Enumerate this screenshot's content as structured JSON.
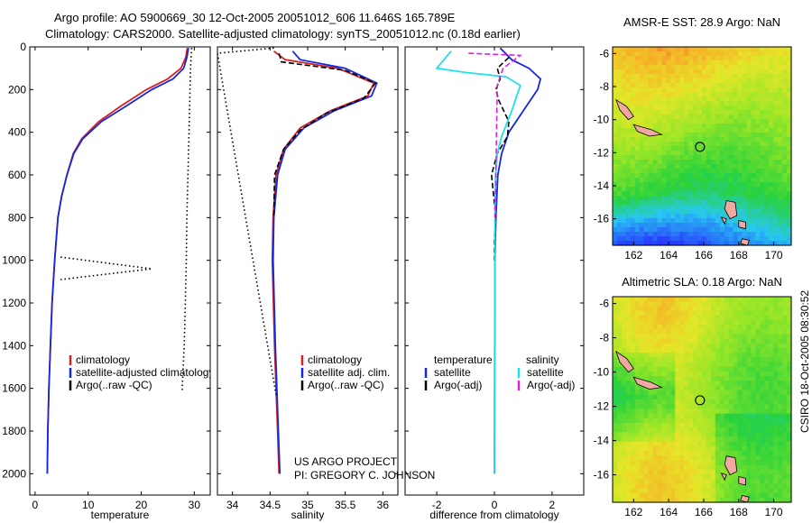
{
  "header": {
    "line1": "Argo profile: AO 5900669_30 12-Oct-2005 20051012_606 11.646S 165.789E",
    "line2": "Climatology: CARS2000. Satellite-adjusted climatology: synTS_20051012.nc (0.18d earlier)"
  },
  "credits": {
    "project": "US ARGO PROJECT",
    "pi": "PI: GREGORY C. JOHNSON",
    "timestamp": "CSIRO 18-Oct-2005 08:30:52"
  },
  "colors": {
    "climatology": "#d62020",
    "satellite": "#1428e0",
    "argo": "#000000",
    "sal_satellite": "#22e0e8",
    "sal_argo": "#e020e0",
    "coast_fill": "#f0a8a0"
  },
  "chart_data": [
    {
      "type": "line",
      "id": "temperature_profile",
      "xlabel": "temperature",
      "ylabel": "",
      "xlim": [
        -1,
        33
      ],
      "ylim": [
        2100,
        0
      ],
      "xticks": [
        0,
        10,
        20,
        30
      ],
      "yticks": [
        0,
        200,
        400,
        600,
        800,
        1000,
        1200,
        1400,
        1600,
        1800,
        2000
      ],
      "legend": {
        "position": "bottom-right",
        "entries": [
          "climatology",
          "satellite-adjusted climatology",
          "Argo(..raw -QC)"
        ]
      },
      "series": [
        {
          "name": "climatology",
          "color": "#d62020",
          "style": "solid",
          "x": [
            28.7,
            28.4,
            27.5,
            25,
            21,
            16,
            12,
            8.8,
            7.2,
            6.0,
            5.0,
            4.3,
            3.7,
            3.2,
            2.9,
            2.6,
            2.4,
            2.3
          ],
          "y": [
            5,
            50,
            100,
            150,
            200,
            280,
            350,
            430,
            500,
            600,
            700,
            800,
            1000,
            1200,
            1400,
            1600,
            1800,
            2000
          ]
        },
        {
          "name": "satellite-adjusted climatology",
          "color": "#1428e0",
          "style": "solid",
          "x": [
            28.9,
            28.6,
            28.0,
            26,
            22,
            17,
            12.5,
            9.0,
            7.3,
            6.0,
            5.0,
            4.3,
            3.7,
            3.2,
            2.9,
            2.6,
            2.4,
            2.3
          ],
          "y": [
            5,
            50,
            100,
            150,
            200,
            280,
            350,
            430,
            500,
            600,
            700,
            800,
            1000,
            1200,
            1400,
            1600,
            1800,
            2000
          ]
        },
        {
          "name": "Argo(..raw -QC)",
          "color": "#000000",
          "style": "dotted",
          "x": [
            29.5,
            29.4,
            29.3,
            29.2,
            29.1,
            29.0,
            28.8,
            28.6,
            28.5,
            28.3,
            28.2,
            28.1,
            27.9,
            27.7
          ],
          "y": [
            5,
            50,
            100,
            200,
            300,
            400,
            600,
            800,
            1000,
            1200,
            1300,
            1400,
            1500,
            1620
          ]
        },
        {
          "name": "Argo spike",
          "color": "#000000",
          "style": "dotted",
          "x": [
            4.8,
            22.0,
            4.8
          ],
          "y": [
            985,
            1040,
            1090
          ]
        }
      ]
    },
    {
      "type": "line",
      "id": "salinity_profile",
      "xlabel": "salinity",
      "xlim": [
        33.8,
        36.2
      ],
      "ylim": [
        2100,
        0
      ],
      "xticks": [
        34,
        34.5,
        35,
        35.5,
        36
      ],
      "yticks": [
        0,
        200,
        400,
        600,
        800,
        1000,
        1200,
        1400,
        1600,
        1800,
        2000
      ],
      "legend": {
        "position": "bottom-right",
        "entries": [
          "climatology",
          "satellite adj. clim.",
          "Argo(..raw -QC)"
        ]
      },
      "series": [
        {
          "name": "climatology",
          "color": "#d62020",
          "style": "solid",
          "x": [
            34.55,
            34.7,
            35.4,
            35.88,
            35.8,
            35.3,
            34.9,
            34.68,
            34.58,
            34.54,
            34.53,
            34.56,
            34.6,
            34.62
          ],
          "y": [
            20,
            60,
            100,
            170,
            230,
            300,
            380,
            480,
            600,
            800,
            1000,
            1400,
            1800,
            2000
          ]
        },
        {
          "name": "satellite adj. clim.",
          "color": "#1428e0",
          "style": "solid",
          "x": [
            34.8,
            34.9,
            35.5,
            35.92,
            35.85,
            35.35,
            34.95,
            34.7,
            34.6,
            34.55,
            34.54,
            34.57,
            34.61,
            34.63
          ],
          "y": [
            20,
            60,
            100,
            170,
            230,
            300,
            380,
            480,
            600,
            800,
            1000,
            1400,
            1800,
            2000
          ]
        },
        {
          "name": "Argo(..raw -QC)",
          "color": "#000000",
          "style": "dashed",
          "x": [
            34.62,
            34.65,
            35.5,
            35.9,
            35.75,
            35.25,
            34.9,
            34.68,
            34.56,
            34.55
          ],
          "y": [
            30,
            70,
            110,
            170,
            240,
            310,
            390,
            480,
            600,
            800
          ]
        },
        {
          "name": "Argo raw",
          "color": "#000000",
          "style": "dotted",
          "x": [
            34.55,
            33.8,
            34.58
          ],
          "y": [
            5,
            30,
            1630
          ]
        }
      ]
    },
    {
      "type": "line",
      "id": "difference_profile",
      "xlabel": "difference from climatology",
      "xlim": [
        -3.1,
        3.1
      ],
      "ylim": [
        2100,
        0
      ],
      "xticks": [
        -2,
        0,
        2
      ],
      "yticks": [
        0,
        200,
        400,
        600,
        800,
        1000,
        1200,
        1400,
        1600,
        1800,
        2000
      ],
      "legend": {
        "position": "bottom-center",
        "entries": [
          "temperature",
          "satellite",
          "Argo(-adj)",
          "salinity",
          "satellite",
          "Argo(-adj)"
        ]
      },
      "series": [
        {
          "name": "temperature satellite",
          "color": "#1428e0",
          "style": "solid",
          "x": [
            0.2,
            0.6,
            1.2,
            1.6,
            1.5,
            1.0,
            0.5,
            0.25,
            0.12,
            0.05,
            0.02,
            0.01,
            0
          ],
          "y": [
            5,
            60,
            100,
            150,
            200,
            300,
            400,
            500,
            600,
            800,
            1000,
            1500,
            2000
          ]
        },
        {
          "name": "temperature Argo(-adj)",
          "color": "#000000",
          "style": "dashed",
          "x": [
            0.5,
            0.1,
            0.2,
            0.05,
            0.15,
            0.5,
            0.45,
            0.1,
            -0.1,
            0.05,
            0,
            0
          ],
          "y": [
            50,
            100,
            150,
            200,
            250,
            350,
            420,
            500,
            600,
            800,
            900,
            1000
          ]
        },
        {
          "name": "salinity satellite",
          "color": "#22e0e8",
          "style": "solid",
          "x": [
            -1.5,
            -2.0,
            -1.0,
            0.4,
            0.9,
            0.6,
            0.25,
            0.1,
            0.04,
            0.02,
            0.01,
            0
          ],
          "y": [
            20,
            100,
            120,
            140,
            180,
            300,
            420,
            500,
            600,
            800,
            1400,
            2000
          ]
        },
        {
          "name": "salinity Argo(-adj)",
          "color": "#e020e0",
          "style": "dashed",
          "x": [
            -0.9,
            0.9,
            0.5,
            0.3,
            0.1,
            0.05,
            0.02
          ],
          "y": [
            30,
            40,
            80,
            100,
            180,
            600,
            800
          ]
        }
      ]
    },
    {
      "type": "heatmap",
      "id": "sst_map",
      "title": "AMSR-E SST: 28.9 Argo: NaN",
      "xlim": [
        160.8,
        171
      ],
      "ylim": [
        -17.6,
        -5.6
      ],
      "xticks": [
        162,
        164,
        166,
        168,
        170
      ],
      "yticks": [
        -6,
        -8,
        -10,
        -12,
        -14,
        -16
      ],
      "argo_position": {
        "lon": 165.789,
        "lat": -11.646
      }
    },
    {
      "type": "heatmap",
      "id": "sla_map",
      "title": "Altimetric SLA: 0.18 Argo: NaN",
      "xlim": [
        160.8,
        171
      ],
      "ylim": [
        -17.6,
        -5.6
      ],
      "xticks": [
        162,
        164,
        166,
        168,
        170
      ],
      "yticks": [
        -6,
        -8,
        -10,
        -12,
        -14,
        -16
      ],
      "argo_position": {
        "lon": 165.789,
        "lat": -11.646
      }
    }
  ]
}
